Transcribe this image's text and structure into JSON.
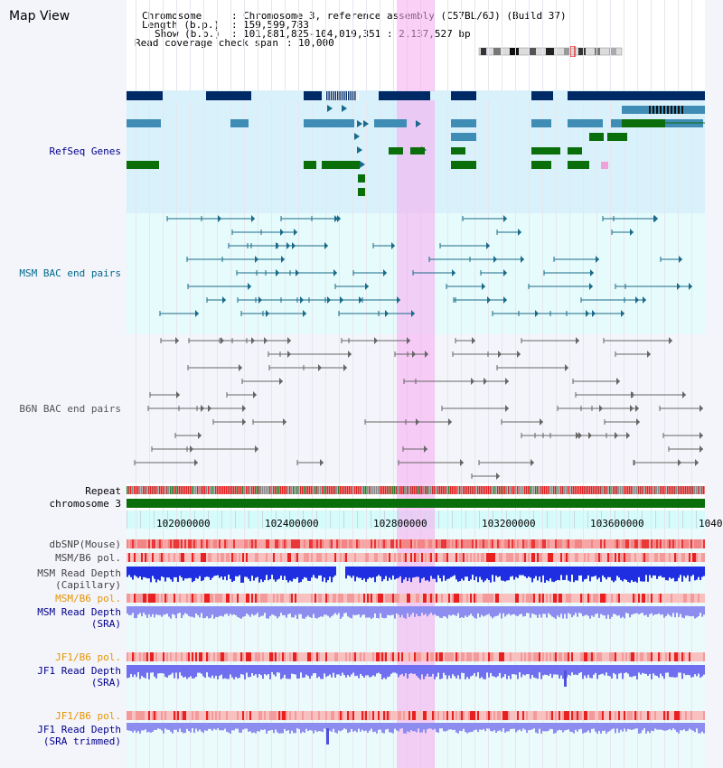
{
  "page": {
    "title": "Map View"
  },
  "header": {
    "chromosome_key": "Chromosome",
    "chromosome_value": "Chromosome 3, reference assembly (C57BL/6J) (Build 37)",
    "length_key": "Length (b.p.)",
    "length_value": "159,599,783",
    "show_key": "Show (b.p.)",
    "show_value": "101,881,825-104,019,351 : 2,137,527 bp",
    "coverage_key": "Read coverage check span",
    "coverage_value": "10,000"
  },
  "tracks": {
    "refseq": "RefSeq Genes",
    "msm_bac": "MSM BAC end pairs",
    "b6n_bac": "B6N BAC end pairs",
    "repeat": "Repeat",
    "chromosome": "chromosome 3",
    "dbsnp": "dbSNP(Mouse)",
    "msm_pol": "MSM/B6 pol.",
    "msm_depth_cap_1": "MSM Read Depth",
    "msm_depth_cap_2": "(Capillary)",
    "msm_pol_2": "MSM/B6 pol.",
    "msm_depth_sra_1": "MSM Read Depth",
    "msm_depth_sra_2": "(SRA)",
    "jf1_pol": "JF1/B6 pol.",
    "jf1_depth_1": "JF1 Read Depth",
    "jf1_depth_2": "(SRA)",
    "jf1_pol_2": "JF1/B6 pol.",
    "jf1_trim_1": "JF1 Read Depth",
    "jf1_trim_2": "(SRA trimmed)"
  },
  "axis": {
    "ticks": [
      "102000000",
      "102400000",
      "102800000",
      "103200000",
      "103600000",
      "1040"
    ]
  },
  "colors": {
    "refseq_bg": "#d9f1fb",
    "bac_msm_bg": "#e6fbfb",
    "bac_b6n_bg": "#f4f4fb",
    "label_blue": "#00008b",
    "label_teal": "#006b8b",
    "label_gray": "#555555",
    "label_orange": "#e69500",
    "navy": "#002a66",
    "steel": "#3f8cb5",
    "green": "#0a6e0a",
    "teal": "#1a6b8a",
    "red": "#e8161c",
    "blue": "#1f2ee0"
  }
}
